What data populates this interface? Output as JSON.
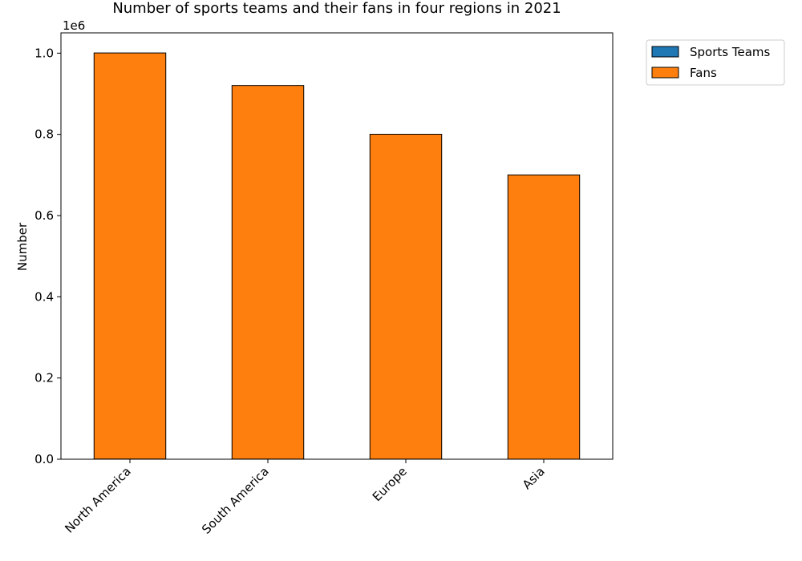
{
  "chart_data": {
    "type": "bar",
    "title": "Number of sports teams and their fans in four regions in 2021",
    "xlabel": "",
    "ylabel": "Number",
    "y_offset_label": "1e6",
    "y_scale": 1000000,
    "categories": [
      "North America",
      "South America",
      "Europe",
      "Asia"
    ],
    "ylim": [
      0,
      1050000
    ],
    "yticks": [
      0,
      200000,
      400000,
      600000,
      800000,
      1000000
    ],
    "ytick_labels": [
      "0.0",
      "0.2",
      "0.4",
      "0.6",
      "0.8",
      "1.0"
    ],
    "stacked": true,
    "series": [
      {
        "name": "Sports Teams",
        "values": [
          500,
          400,
          300,
          200
        ],
        "color": "#1f77b4"
      },
      {
        "name": "Fans",
        "values": [
          1000000,
          920000,
          800000,
          700000
        ],
        "color": "#ff7f0e"
      }
    ],
    "legend_position": "outside-top-right",
    "grid": false
  }
}
